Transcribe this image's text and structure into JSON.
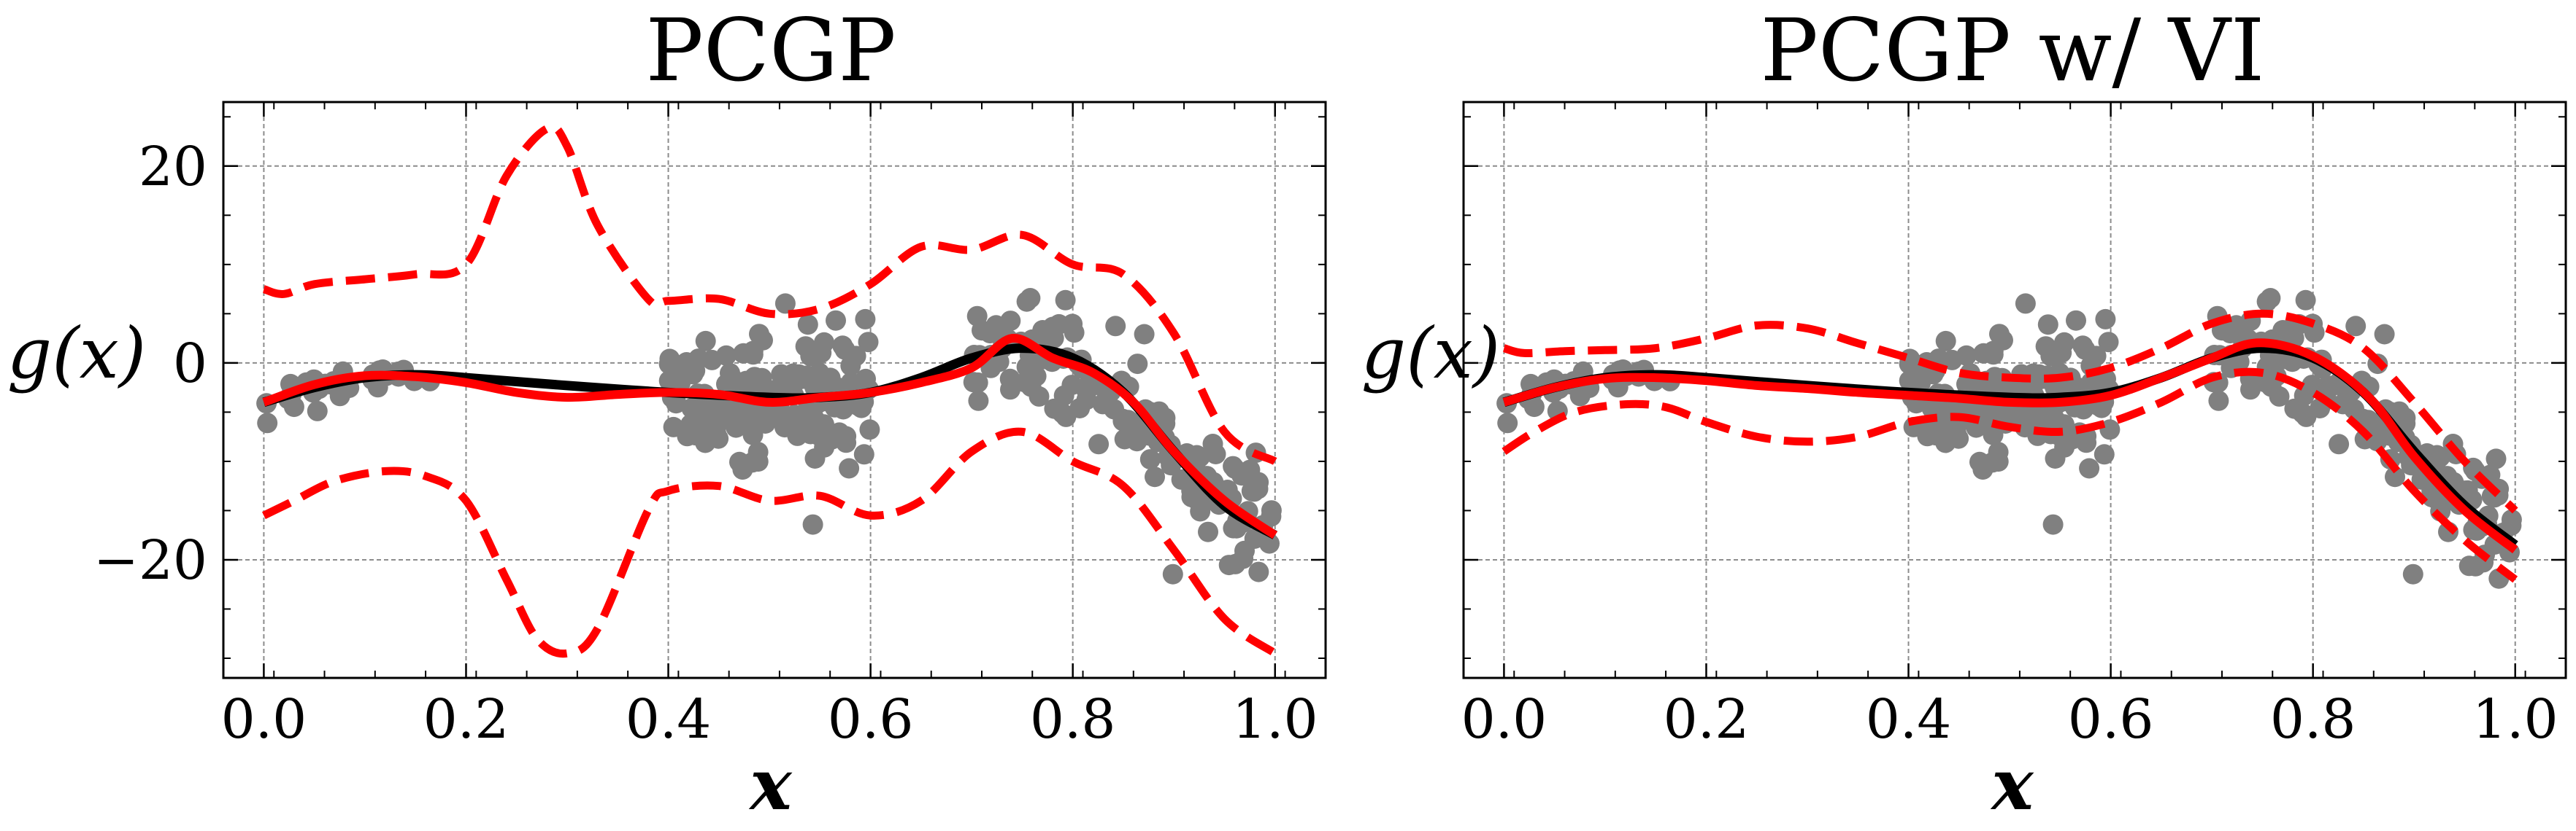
{
  "chart_data": [
    {
      "type": "line",
      "title": "PCGP",
      "xlabel": "x",
      "ylabel": "g(x)",
      "xlim": [
        -0.04,
        1.05
      ],
      "ylim": [
        -32,
        26.5
      ],
      "xticks": [
        0.0,
        0.2,
        0.4,
        0.6,
        0.8,
        1.0
      ],
      "xtick_labels": [
        "0.0",
        "0.2",
        "0.4",
        "0.6",
        "0.8",
        "1.0"
      ],
      "yticks": [
        20,
        0,
        -20
      ],
      "ytick_labels": [
        "20",
        "0",
        "−20"
      ],
      "show_ytick_labels": true,
      "grid": true,
      "series": [
        {
          "role": "true-function",
          "color": "#000000",
          "style": "solid",
          "x": [
            0.0,
            0.05,
            0.1,
            0.15,
            0.2,
            0.3,
            0.4,
            0.5,
            0.55,
            0.6,
            0.65,
            0.7,
            0.75,
            0.8,
            0.85,
            0.9,
            0.95,
            1.0
          ],
          "y": [
            -4,
            -2.5,
            -1.5,
            -1.2,
            -1.5,
            -2.3,
            -3,
            -3.5,
            -3.5,
            -3,
            -1.5,
            0.5,
            1.5,
            0.5,
            -3,
            -9,
            -14.5,
            -17.5
          ]
        },
        {
          "role": "prediction-mean",
          "color": "#ff0000",
          "style": "solid",
          "x": [
            0.0,
            0.05,
            0.1,
            0.15,
            0.2,
            0.25,
            0.3,
            0.35,
            0.4,
            0.45,
            0.5,
            0.55,
            0.6,
            0.65,
            0.7,
            0.74,
            0.78,
            0.82,
            0.86,
            0.9,
            0.95,
            1.0
          ],
          "y": [
            -4,
            -2.2,
            -1.3,
            -1.4,
            -2,
            -3,
            -3.5,
            -3.2,
            -3,
            -3.2,
            -4,
            -3.5,
            -3,
            -2,
            -0.5,
            2.5,
            0.5,
            -1,
            -4,
            -9,
            -14,
            -17.5
          ]
        },
        {
          "role": "upper-bound",
          "color": "#ff0000",
          "style": "dashed",
          "x": [
            0.0,
            0.02,
            0.05,
            0.1,
            0.15,
            0.2,
            0.24,
            0.28,
            0.3,
            0.33,
            0.38,
            0.4,
            0.45,
            0.5,
            0.55,
            0.6,
            0.65,
            0.7,
            0.75,
            0.8,
            0.85,
            0.9,
            0.95,
            1.0
          ],
          "y": [
            7.5,
            7.0,
            8,
            8.5,
            9,
            10,
            19,
            23.8,
            22,
            14,
            6.5,
            6.3,
            6.5,
            5.0,
            5.5,
            8,
            11.8,
            11.5,
            13,
            10,
            9,
            3,
            -7,
            -10
          ]
        },
        {
          "role": "lower-bound",
          "color": "#ff0000",
          "style": "dashed",
          "x": [
            0.0,
            0.03,
            0.07,
            0.12,
            0.16,
            0.2,
            0.24,
            0.27,
            0.3,
            0.33,
            0.38,
            0.4,
            0.45,
            0.5,
            0.55,
            0.6,
            0.65,
            0.7,
            0.75,
            0.8,
            0.85,
            0.9,
            0.95,
            1.0
          ],
          "y": [
            -15.5,
            -14,
            -12,
            -11,
            -11.5,
            -14,
            -22,
            -28,
            -29.5,
            -27,
            -15,
            -13,
            -12.5,
            -14,
            -13.5,
            -15.5,
            -14,
            -9,
            -7,
            -10,
            -12.5,
            -19,
            -26,
            -29.5
          ]
        }
      ]
    },
    {
      "type": "line",
      "title": "PCGP w/ VI",
      "xlabel": "x",
      "ylabel": "g(x)",
      "xlim": [
        -0.04,
        1.05
      ],
      "ylim": [
        -32,
        26.5
      ],
      "xticks": [
        0.0,
        0.2,
        0.4,
        0.6,
        0.8,
        1.0
      ],
      "xtick_labels": [
        "0.0",
        "0.2",
        "0.4",
        "0.6",
        "0.8",
        "1.0"
      ],
      "yticks": [
        20,
        0,
        -20
      ],
      "ytick_labels": [
        "",
        "",
        ""
      ],
      "show_ytick_labels": false,
      "grid": true,
      "series": [
        {
          "role": "true-function",
          "color": "#000000",
          "style": "solid",
          "x": [
            0.0,
            0.05,
            0.1,
            0.15,
            0.2,
            0.3,
            0.4,
            0.5,
            0.55,
            0.6,
            0.65,
            0.7,
            0.75,
            0.8,
            0.85,
            0.9,
            0.95,
            1.0
          ],
          "y": [
            -4,
            -2.5,
            -1.5,
            -1.2,
            -1.5,
            -2.3,
            -3,
            -3.5,
            -3.5,
            -3,
            -1.5,
            0.5,
            1.5,
            0.5,
            -3,
            -9,
            -14.5,
            -18.5
          ]
        },
        {
          "role": "prediction-mean",
          "color": "#ff0000",
          "style": "solid",
          "x": [
            0.0,
            0.05,
            0.1,
            0.15,
            0.2,
            0.25,
            0.3,
            0.35,
            0.4,
            0.45,
            0.5,
            0.55,
            0.6,
            0.65,
            0.7,
            0.74,
            0.78,
            0.82,
            0.86,
            0.9,
            0.95,
            1.0
          ],
          "y": [
            -4,
            -2.5,
            -1.6,
            -1.5,
            -1.8,
            -2.3,
            -2.6,
            -3,
            -3.3,
            -3.6,
            -4,
            -4,
            -3.3,
            -1.5,
            0.5,
            2,
            1.5,
            -0.5,
            -4,
            -9.5,
            -15,
            -19
          ]
        },
        {
          "role": "upper-bound",
          "color": "#ff0000",
          "style": "dashed",
          "x": [
            0.0,
            0.02,
            0.06,
            0.1,
            0.15,
            0.2,
            0.25,
            0.3,
            0.35,
            0.4,
            0.45,
            0.5,
            0.55,
            0.6,
            0.65,
            0.7,
            0.75,
            0.8,
            0.85,
            0.9,
            0.95,
            1.0
          ],
          "y": [
            1.5,
            1,
            1.2,
            1.3,
            1.5,
            2.5,
            3.8,
            3.5,
            2,
            0.5,
            -1,
            -1.5,
            -1.5,
            -0.5,
            1.5,
            4,
            5,
            4,
            1.5,
            -4,
            -10,
            -15
          ]
        },
        {
          "role": "lower-bound",
          "color": "#ff0000",
          "style": "dashed",
          "x": [
            0.0,
            0.03,
            0.07,
            0.12,
            0.16,
            0.2,
            0.25,
            0.3,
            0.35,
            0.4,
            0.45,
            0.5,
            0.55,
            0.6,
            0.65,
            0.7,
            0.75,
            0.8,
            0.85,
            0.9,
            0.95,
            1.0
          ],
          "y": [
            -9,
            -7,
            -5,
            -4.2,
            -4.5,
            -6,
            -7.5,
            -8,
            -7.5,
            -6,
            -5.5,
            -6.5,
            -7,
            -6,
            -4,
            -1.5,
            -1,
            -3,
            -7,
            -13,
            -18,
            -22
          ]
        }
      ]
    }
  ]
}
